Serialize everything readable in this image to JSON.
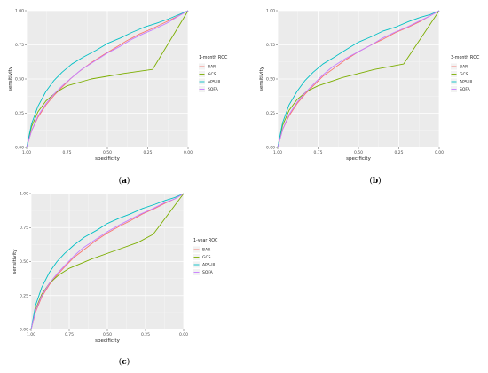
{
  "chart_data": [
    {
      "type": "line",
      "panel_label": "a",
      "xlabel": "specificity",
      "ylabel": "sensitivity",
      "x_reversed": true,
      "xlim": [
        1.0,
        0.0
      ],
      "ylim": [
        0.0,
        1.0
      ],
      "x_ticks": [
        "1.00",
        "0.75",
        "0.50",
        "0.25",
        "0.00"
      ],
      "y_ticks": [
        "0.00",
        "0.25",
        "0.50",
        "0.75",
        "1.00"
      ],
      "grid": true,
      "legend_title": "1-month ROC",
      "legend_position": "right",
      "series": [
        {
          "name": "BAR",
          "color": "#f8766d",
          "points": [
            [
              1.0,
              0.0
            ],
            [
              0.97,
              0.12
            ],
            [
              0.93,
              0.22
            ],
            [
              0.88,
              0.31
            ],
            [
              0.83,
              0.38
            ],
            [
              0.78,
              0.44
            ],
            [
              0.73,
              0.5
            ],
            [
              0.68,
              0.55
            ],
            [
              0.6,
              0.62
            ],
            [
              0.52,
              0.68
            ],
            [
              0.45,
              0.73
            ],
            [
              0.38,
              0.78
            ],
            [
              0.3,
              0.83
            ],
            [
              0.22,
              0.87
            ],
            [
              0.15,
              0.91
            ],
            [
              0.08,
              0.95
            ],
            [
              0.0,
              1.0
            ]
          ]
        },
        {
          "name": "GCS",
          "color": "#7cae00",
          "points": [
            [
              1.0,
              0.0
            ],
            [
              0.97,
              0.15
            ],
            [
              0.93,
              0.26
            ],
            [
              0.88,
              0.34
            ],
            [
              0.82,
              0.4
            ],
            [
              0.75,
              0.45
            ],
            [
              0.6,
              0.5
            ],
            [
              0.4,
              0.54
            ],
            [
              0.22,
              0.57
            ],
            [
              0.0,
              1.0
            ]
          ]
        },
        {
          "name": "APS-III",
          "color": "#00bfc4",
          "points": [
            [
              1.0,
              0.0
            ],
            [
              0.97,
              0.17
            ],
            [
              0.93,
              0.3
            ],
            [
              0.88,
              0.41
            ],
            [
              0.83,
              0.49
            ],
            [
              0.78,
              0.55
            ],
            [
              0.72,
              0.61
            ],
            [
              0.65,
              0.66
            ],
            [
              0.57,
              0.71
            ],
            [
              0.5,
              0.76
            ],
            [
              0.42,
              0.8
            ],
            [
              0.35,
              0.84
            ],
            [
              0.27,
              0.88
            ],
            [
              0.19,
              0.91
            ],
            [
              0.12,
              0.94
            ],
            [
              0.06,
              0.97
            ],
            [
              0.0,
              1.0
            ]
          ]
        },
        {
          "name": "SOFA",
          "color": "#c77cff",
          "points": [
            [
              1.0,
              0.0
            ],
            [
              0.97,
              0.12
            ],
            [
              0.93,
              0.23
            ],
            [
              0.88,
              0.32
            ],
            [
              0.83,
              0.39
            ],
            [
              0.78,
              0.45
            ],
            [
              0.72,
              0.51
            ],
            [
              0.66,
              0.57
            ],
            [
              0.58,
              0.63
            ],
            [
              0.5,
              0.69
            ],
            [
              0.42,
              0.74
            ],
            [
              0.35,
              0.79
            ],
            [
              0.28,
              0.83
            ],
            [
              0.2,
              0.87
            ],
            [
              0.13,
              0.91
            ],
            [
              0.06,
              0.96
            ],
            [
              0.0,
              1.0
            ]
          ]
        }
      ]
    },
    {
      "type": "line",
      "panel_label": "b",
      "xlabel": "specificity",
      "ylabel": "sensitivity",
      "x_reversed": true,
      "xlim": [
        1.0,
        0.0
      ],
      "ylim": [
        0.0,
        1.0
      ],
      "x_ticks": [
        "1.00",
        "0.75",
        "0.50",
        "0.25",
        "0.00"
      ],
      "y_ticks": [
        "0.00",
        "0.25",
        "0.50",
        "0.75",
        "1.00"
      ],
      "grid": true,
      "legend_title": "3-month ROC",
      "legend_position": "right",
      "series": [
        {
          "name": "BAR",
          "color": "#f8766d",
          "points": [
            [
              1.0,
              0.0
            ],
            [
              0.97,
              0.13
            ],
            [
              0.93,
              0.23
            ],
            [
              0.88,
              0.32
            ],
            [
              0.83,
              0.39
            ],
            [
              0.78,
              0.45
            ],
            [
              0.72,
              0.52
            ],
            [
              0.65,
              0.58
            ],
            [
              0.58,
              0.64
            ],
            [
              0.5,
              0.7
            ],
            [
              0.42,
              0.75
            ],
            [
              0.35,
              0.79
            ],
            [
              0.27,
              0.84
            ],
            [
              0.19,
              0.88
            ],
            [
              0.12,
              0.92
            ],
            [
              0.06,
              0.96
            ],
            [
              0.0,
              1.0
            ]
          ]
        },
        {
          "name": "GCS",
          "color": "#7cae00",
          "points": [
            [
              1.0,
              0.0
            ],
            [
              0.97,
              0.16
            ],
            [
              0.93,
              0.27
            ],
            [
              0.88,
              0.35
            ],
            [
              0.82,
              0.41
            ],
            [
              0.75,
              0.45
            ],
            [
              0.6,
              0.51
            ],
            [
              0.4,
              0.57
            ],
            [
              0.22,
              0.61
            ],
            [
              0.0,
              1.0
            ]
          ]
        },
        {
          "name": "APS-III",
          "color": "#00bfc4",
          "points": [
            [
              1.0,
              0.0
            ],
            [
              0.97,
              0.18
            ],
            [
              0.93,
              0.31
            ],
            [
              0.88,
              0.41
            ],
            [
              0.83,
              0.49
            ],
            [
              0.78,
              0.55
            ],
            [
              0.72,
              0.61
            ],
            [
              0.65,
              0.66
            ],
            [
              0.57,
              0.72
            ],
            [
              0.5,
              0.77
            ],
            [
              0.42,
              0.81
            ],
            [
              0.35,
              0.85
            ],
            [
              0.27,
              0.88
            ],
            [
              0.19,
              0.92
            ],
            [
              0.12,
              0.95
            ],
            [
              0.06,
              0.97
            ],
            [
              0.0,
              1.0
            ]
          ]
        },
        {
          "name": "SOFA",
          "color": "#c77cff",
          "points": [
            [
              1.0,
              0.0
            ],
            [
              0.97,
              0.13
            ],
            [
              0.93,
              0.24
            ],
            [
              0.88,
              0.33
            ],
            [
              0.83,
              0.4
            ],
            [
              0.78,
              0.46
            ],
            [
              0.72,
              0.53
            ],
            [
              0.66,
              0.59
            ],
            [
              0.58,
              0.65
            ],
            [
              0.5,
              0.7
            ],
            [
              0.42,
              0.75
            ],
            [
              0.35,
              0.8
            ],
            [
              0.28,
              0.84
            ],
            [
              0.2,
              0.88
            ],
            [
              0.13,
              0.92
            ],
            [
              0.06,
              0.96
            ],
            [
              0.0,
              1.0
            ]
          ]
        }
      ]
    },
    {
      "type": "line",
      "panel_label": "c",
      "xlabel": "specificity",
      "ylabel": "sensitivity",
      "x_reversed": true,
      "xlim": [
        1.0,
        0.0
      ],
      "ylim": [
        0.0,
        1.0
      ],
      "x_ticks": [
        "1.00",
        "0.75",
        "0.50",
        "0.25",
        "0.00"
      ],
      "y_ticks": [
        "0.00",
        "0.25",
        "0.50",
        "0.75",
        "1.00"
      ],
      "grid": true,
      "legend_title": "1-year ROC",
      "legend_position": "right",
      "series": [
        {
          "name": "BAR",
          "color": "#f8766d",
          "points": [
            [
              1.0,
              0.0
            ],
            [
              0.97,
              0.13
            ],
            [
              0.93,
              0.24
            ],
            [
              0.88,
              0.33
            ],
            [
              0.83,
              0.4
            ],
            [
              0.78,
              0.46
            ],
            [
              0.72,
              0.53
            ],
            [
              0.65,
              0.59
            ],
            [
              0.58,
              0.65
            ],
            [
              0.5,
              0.71
            ],
            [
              0.42,
              0.76
            ],
            [
              0.35,
              0.8
            ],
            [
              0.27,
              0.85
            ],
            [
              0.19,
              0.89
            ],
            [
              0.12,
              0.93
            ],
            [
              0.06,
              0.96
            ],
            [
              0.0,
              1.0
            ]
          ]
        },
        {
          "name": "GCS",
          "color": "#7cae00",
          "points": [
            [
              1.0,
              0.0
            ],
            [
              0.97,
              0.15
            ],
            [
              0.93,
              0.26
            ],
            [
              0.88,
              0.34
            ],
            [
              0.82,
              0.4
            ],
            [
              0.75,
              0.45
            ],
            [
              0.6,
              0.52
            ],
            [
              0.45,
              0.58
            ],
            [
              0.3,
              0.64
            ],
            [
              0.2,
              0.7
            ],
            [
              0.0,
              1.0
            ]
          ]
        },
        {
          "name": "APS-III",
          "color": "#00bfc4",
          "points": [
            [
              1.0,
              0.0
            ],
            [
              0.97,
              0.18
            ],
            [
              0.93,
              0.31
            ],
            [
              0.88,
              0.42
            ],
            [
              0.83,
              0.5
            ],
            [
              0.78,
              0.56
            ],
            [
              0.72,
              0.62
            ],
            [
              0.65,
              0.68
            ],
            [
              0.57,
              0.73
            ],
            [
              0.5,
              0.78
            ],
            [
              0.42,
              0.82
            ],
            [
              0.35,
              0.85
            ],
            [
              0.27,
              0.89
            ],
            [
              0.19,
              0.92
            ],
            [
              0.12,
              0.95
            ],
            [
              0.06,
              0.97
            ],
            [
              0.0,
              1.0
            ]
          ]
        },
        {
          "name": "SOFA",
          "color": "#c77cff",
          "points": [
            [
              1.0,
              0.0
            ],
            [
              0.97,
              0.14
            ],
            [
              0.93,
              0.25
            ],
            [
              0.88,
              0.34
            ],
            [
              0.83,
              0.41
            ],
            [
              0.78,
              0.47
            ],
            [
              0.72,
              0.54
            ],
            [
              0.66,
              0.6
            ],
            [
              0.58,
              0.66
            ],
            [
              0.5,
              0.72
            ],
            [
              0.42,
              0.77
            ],
            [
              0.35,
              0.81
            ],
            [
              0.28,
              0.85
            ],
            [
              0.2,
              0.89
            ],
            [
              0.13,
              0.93
            ],
            [
              0.06,
              0.96
            ],
            [
              0.0,
              1.0
            ]
          ]
        }
      ]
    }
  ]
}
